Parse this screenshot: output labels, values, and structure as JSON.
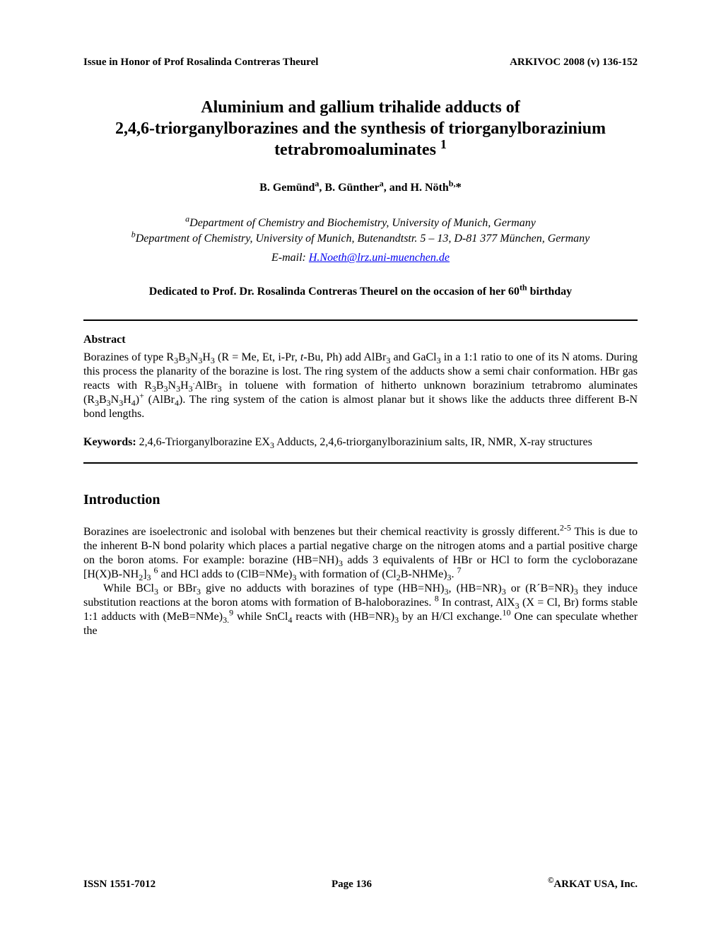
{
  "header": {
    "left": "Issue in Honor of Prof Rosalinda Contreras Theurel",
    "right": "ARKIVOC 2008 (v) 136-152"
  },
  "title": {
    "line1": "Aluminium and gallium trihalide adducts of",
    "line2": "2,4,6-triorganylborazines and the synthesis of triorganylborazinium",
    "line3_prefix": "tetrabromoaluminates ",
    "line3_sup": "1"
  },
  "authors": {
    "a1_name": "B. Gemünd",
    "a1_sup": "a",
    "sep1": ", ",
    "a2_name": "B. Günther",
    "a2_sup": "a",
    "sep2": ", and ",
    "a3_name": "H. Nöth",
    "a3_sup": "b,",
    "a3_asterisk": "*"
  },
  "affiliations": {
    "a_sup": "a",
    "a_text": "Department of Chemistry and Biochemistry, University of Munich, Germany",
    "b_sup": "b",
    "b_text": "Department of Chemistry, University of Munich, Butenandtstr. 5 – 13, D-81 377 München, Germany",
    "email_label": "E-mail: ",
    "email": "H.Noeth@lrz.uni-muenchen.de"
  },
  "dedication": {
    "prefix": "Dedicated to Prof. Dr. Rosalinda Contreras Theurel on the occasion of her 60",
    "sup": "th",
    "suffix": " birthday"
  },
  "abstract": {
    "heading": "Abstract",
    "p1a": "Borazines of type R",
    "p1b": "B",
    "p1c": "N",
    "p1d": "H",
    "p1e": " (R = Me, Et, i-Pr, ",
    "p1f": "t",
    "p1g": "-Bu, Ph) add AlBr",
    "p1h": " and GaCl",
    "p1i": " in a 1:1 ratio  to one of its N atoms. During this process the planarity of the borazine is lost. The ring system of the adducts show a semi chair conformation. HBr gas reacts with R",
    "p1j": "B",
    "p1k": "N",
    "p1l": "H",
    "p1m": "AlBr",
    "p1n": " in toluene with formation of hitherto unknown borazinium tetrabromo aluminates (R",
    "p1o": "B",
    "p1p": "N",
    "p1q": "H",
    "p1r": ")",
    "p1s": " (AlBr",
    "p1t": "). The ring system of the cation is almost planar but it shows like the adducts three different B-N bond lengths.",
    "sub3": "3",
    "sub4": "4",
    "supplus": "+",
    "supdot": "."
  },
  "keywords": {
    "label": "Keywords: ",
    "pre": "2,4,6-Triorganylborazine EX",
    "sub3": "3",
    "post": " Adducts, 2,4,6-triorganylborazinium salts, IR, NMR, X-ray structures"
  },
  "introduction": {
    "heading": "Introduction",
    "p1a": "Borazines are isoelectronic and isolobal with benzenes but their chemical reactivity is grossly different.",
    "p1sup1": "2-5",
    "p1b": " This is due to the inherent B-N bond polarity which places a partial negative charge on the nitrogen atoms and a partial positive charge on the boron atoms. For example: borazine (HB=NH)",
    "p1c": " adds 3 equivalents of HBr or HCl to form the cycloborazane [H(X)B-NH",
    "p1d": "]",
    "p1sup2": "6",
    "p1e": " and HCl adds to (ClB=NMe)",
    "p1f": " with formation of (Cl",
    "p1g": "B-NHMe)",
    "p1h": ". ",
    "p1sup3": "7",
    "p2a": "While BCl",
    "p2b": " or BBr",
    "p2c": " give no adducts with borazines of type (HB=NH)",
    "p2d": ", (HB=NR)",
    "p2e": " or (R´B=NR)",
    "p2f": " they induce substitution reactions at the boron atoms with formation of B-haloborazines. ",
    "p2sup1": "8",
    "p2g": " In contrast, AlX",
    "p2h": " (X = Cl, Br) forms stable 1:1 adducts with (MeB=NMe)",
    "p2sup2": "9",
    "p2i": " while SnCl",
    "p2j": " reacts with (HB=NR)",
    "p2k": " by an H/Cl exchange.",
    "p2sup3": "10",
    "p2l": " One can speculate whether the",
    "sub2": "2",
    "sub3": "3",
    "sub4": "4",
    "subdot3": "3."
  },
  "footer": {
    "left": "ISSN 1551-7012",
    "center": "Page 136",
    "right_sup": "©",
    "right": "ARKAT USA, Inc."
  }
}
